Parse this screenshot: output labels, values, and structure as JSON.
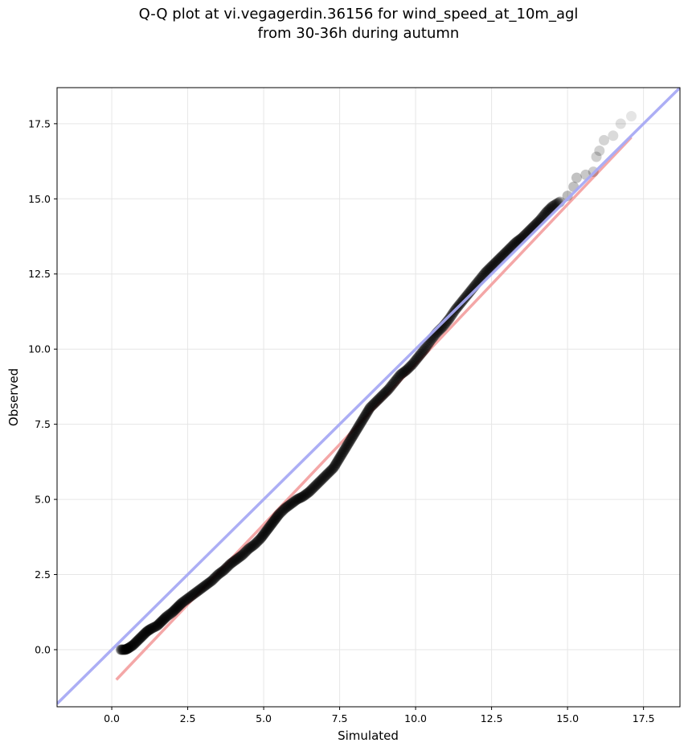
{
  "chart_data": {
    "type": "scatter",
    "title_lines": [
      "Q-Q plot at vi.vegagerdin.36156 for wind_speed_at_10m_agl",
      "from 30-36h during autumn"
    ],
    "xlabel": "Simulated",
    "ylabel": "Observed",
    "xlim": [
      -1.8,
      18.7
    ],
    "ylim": [
      -1.9,
      18.7
    ],
    "xticks": [
      "0.0",
      "2.5",
      "5.0",
      "7.5",
      "10.0",
      "12.5",
      "15.0",
      "17.5"
    ],
    "yticks": [
      "0.0",
      "2.5",
      "5.0",
      "7.5",
      "10.0",
      "12.5",
      "15.0",
      "17.5"
    ],
    "grid": true,
    "series": [
      {
        "kind": "quantile_points",
        "color": "#000000",
        "points": [
          [
            0.3,
            0.0
          ],
          [
            0.45,
            0.0
          ],
          [
            0.55,
            0.05
          ],
          [
            0.7,
            0.15
          ],
          [
            0.85,
            0.3
          ],
          [
            1.0,
            0.45
          ],
          [
            1.15,
            0.6
          ],
          [
            1.3,
            0.7
          ],
          [
            1.5,
            0.8
          ],
          [
            1.65,
            0.95
          ],
          [
            1.8,
            1.1
          ],
          [
            2.0,
            1.25
          ],
          [
            2.15,
            1.4
          ],
          [
            2.3,
            1.55
          ],
          [
            2.5,
            1.7
          ],
          [
            2.7,
            1.85
          ],
          [
            2.9,
            2.0
          ],
          [
            3.1,
            2.15
          ],
          [
            3.3,
            2.3
          ],
          [
            3.5,
            2.5
          ],
          [
            3.7,
            2.65
          ],
          [
            3.9,
            2.85
          ],
          [
            4.1,
            3.0
          ],
          [
            4.3,
            3.15
          ],
          [
            4.5,
            3.35
          ],
          [
            4.7,
            3.5
          ],
          [
            4.9,
            3.7
          ],
          [
            5.05,
            3.9
          ],
          [
            5.2,
            4.1
          ],
          [
            5.35,
            4.3
          ],
          [
            5.5,
            4.5
          ],
          [
            5.7,
            4.7
          ],
          [
            5.9,
            4.85
          ],
          [
            6.1,
            5.0
          ],
          [
            6.3,
            5.1
          ],
          [
            6.5,
            5.25
          ],
          [
            6.7,
            5.45
          ],
          [
            6.9,
            5.65
          ],
          [
            7.1,
            5.85
          ],
          [
            7.3,
            6.05
          ],
          [
            7.45,
            6.3
          ],
          [
            7.6,
            6.55
          ],
          [
            7.75,
            6.8
          ],
          [
            7.9,
            7.05
          ],
          [
            8.05,
            7.3
          ],
          [
            8.2,
            7.55
          ],
          [
            8.35,
            7.8
          ],
          [
            8.5,
            8.05
          ],
          [
            8.7,
            8.25
          ],
          [
            8.9,
            8.45
          ],
          [
            9.1,
            8.65
          ],
          [
            9.3,
            8.9
          ],
          [
            9.5,
            9.15
          ],
          [
            9.7,
            9.3
          ],
          [
            9.9,
            9.5
          ],
          [
            10.1,
            9.75
          ],
          [
            10.3,
            10.0
          ],
          [
            10.5,
            10.3
          ],
          [
            10.7,
            10.55
          ],
          [
            10.9,
            10.75
          ],
          [
            11.1,
            11.0
          ],
          [
            11.3,
            11.3
          ],
          [
            11.5,
            11.55
          ],
          [
            11.7,
            11.8
          ],
          [
            11.9,
            12.05
          ],
          [
            12.1,
            12.3
          ],
          [
            12.3,
            12.55
          ],
          [
            12.5,
            12.75
          ],
          [
            12.7,
            12.95
          ],
          [
            12.9,
            13.15
          ],
          [
            13.1,
            13.35
          ],
          [
            13.3,
            13.55
          ],
          [
            13.5,
            13.7
          ],
          [
            13.7,
            13.9
          ],
          [
            13.9,
            14.1
          ],
          [
            14.1,
            14.3
          ],
          [
            14.3,
            14.55
          ],
          [
            14.5,
            14.75
          ],
          [
            14.75,
            14.9
          ],
          [
            15.0,
            15.1
          ],
          [
            15.2,
            15.4
          ],
          [
            15.3,
            15.7
          ],
          [
            15.6,
            15.8
          ],
          [
            15.85,
            15.9
          ],
          [
            15.95,
            16.4
          ],
          [
            16.05,
            16.6
          ],
          [
            16.2,
            16.95
          ],
          [
            16.5,
            17.1
          ],
          [
            16.75,
            17.5
          ],
          [
            17.1,
            17.75
          ]
        ]
      },
      {
        "kind": "fit_line",
        "color": "#f4a3a3",
        "from": [
          0.15,
          -1.0
        ],
        "to": [
          17.1,
          17.05
        ]
      },
      {
        "kind": "identity_line",
        "color": "#a8aaf5",
        "from": [
          -1.8,
          -1.8
        ],
        "to": [
          18.7,
          18.7
        ]
      }
    ]
  }
}
